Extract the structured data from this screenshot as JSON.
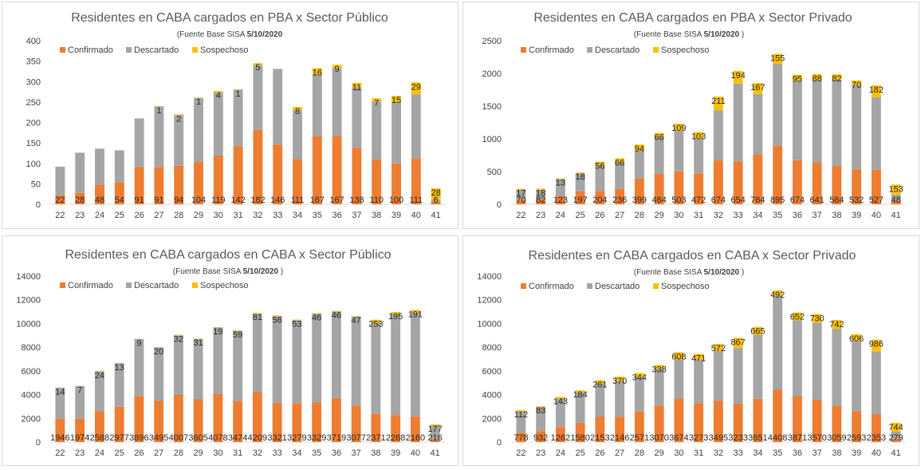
{
  "colors": {
    "confirmado": "#ED7D31",
    "descartado": "#A5A5A5",
    "sospechoso": "#FFC000"
  },
  "legend": [
    "Confirmado",
    "Descartado",
    "Sospechoso"
  ],
  "source_label": "(Fuente  Base SISA",
  "source_date": "5/10/2020",
  "chart_data": [
    {
      "type": "bar",
      "stacked": true,
      "title": "Residentes en CABA cargados en PBA x Sector Público",
      "source": "(Fuente  Base SISA  5/10/2020",
      "categories": [
        "22",
        "23",
        "24",
        "25",
        "26",
        "27",
        "28",
        "29",
        "30",
        "31",
        "32",
        "33",
        "34",
        "35",
        "36",
        "37",
        "38",
        "39",
        "40",
        "41"
      ],
      "ylim": [
        0,
        400
      ],
      "yticks": [
        "0",
        "50",
        "100",
        "150",
        "200",
        "250",
        "300",
        "350",
        "400"
      ],
      "series": [
        {
          "name": "Confirmado",
          "values": [
            22,
            28,
            48,
            54,
            91,
            91,
            94,
            104,
            119,
            142,
            182,
            146,
            111,
            167,
            167,
            138,
            110,
            100,
            111,
            6
          ]
        },
        {
          "name": "Descartado",
          "values": [
            70,
            98,
            88,
            78,
            119,
            148,
            124,
            156,
            154,
            138,
            158,
            185,
            119,
            150,
            165,
            148,
            142,
            150,
            158,
            5
          ]
        },
        {
          "name": "Sospechoso",
          "values": [
            0,
            0,
            0,
            0,
            0,
            1,
            2,
            1,
            4,
            1,
            5,
            0,
            8,
            16,
            9,
            11,
            7,
            15,
            29,
            28
          ]
        }
      ],
      "labels": {
        "Confirmado": [
          "22",
          "28",
          "48",
          "54",
          "91",
          "91",
          "94",
          "104",
          "119",
          "142",
          "182",
          "146",
          "111",
          "167",
          "167",
          "138",
          "110",
          "100",
          "111",
          "6"
        ],
        "Sospechoso": [
          "",
          "",
          "",
          "",
          "",
          "1",
          "2",
          "1",
          "4",
          "1",
          "5",
          "",
          "8",
          "16",
          "9",
          "11",
          "7",
          "15",
          "29",
          "28"
        ]
      }
    },
    {
      "type": "bar",
      "stacked": true,
      "title": "Residentes en CABA cargados en PBA x Sector Privado",
      "source": "(Fuente  Base SISA  5/10/2020  )",
      "categories": [
        "22",
        "23",
        "24",
        "25",
        "26",
        "27",
        "28",
        "29",
        "30",
        "31",
        "32",
        "33",
        "34",
        "35",
        "36",
        "37",
        "38",
        "39",
        "40",
        "41"
      ],
      "ylim": [
        0,
        2500
      ],
      "yticks": [
        "0",
        "500",
        "1000",
        "1500",
        "2000",
        "2500"
      ],
      "series": [
        {
          "name": "Confirmado",
          "values": [
            70,
            82,
            123,
            197,
            204,
            236,
            399,
            464,
            503,
            472,
            674,
            654,
            764,
            895,
            674,
            641,
            584,
            532,
            527,
            48
          ]
        },
        {
          "name": "Descartado",
          "values": [
            150,
            140,
            260,
            270,
            390,
            400,
            420,
            560,
            620,
            530,
            760,
            1190,
            920,
            1250,
            1210,
            1260,
            1320,
            1290,
            1110,
            100
          ]
        },
        {
          "name": "Sospechoso",
          "values": [
            17,
            18,
            13,
            18,
            56,
            66,
            94,
            66,
            109,
            103,
            211,
            194,
            167,
            155,
            95,
            88,
            82,
            70,
            182,
            153
          ]
        }
      ],
      "labels": {
        "Confirmado": [
          "70",
          "82",
          "123",
          "197",
          "204",
          "236",
          "399",
          "464",
          "503",
          "472",
          "674",
          "654",
          "764",
          "895",
          "674",
          "641",
          "584",
          "532",
          "527",
          "48"
        ],
        "Sospechoso": [
          "17",
          "18",
          "13",
          "18",
          "56",
          "66",
          "94",
          "66",
          "109",
          "103",
          "211",
          "194",
          "167",
          "155",
          "95",
          "88",
          "82",
          "70",
          "182",
          "153"
        ]
      }
    },
    {
      "type": "bar",
      "stacked": true,
      "title": "Residentes en CABA cargados en CABA x Sector Público",
      "source": "(Fuente  Base SISA  5/10/2020  )",
      "categories": [
        "22",
        "23",
        "24",
        "25",
        "26",
        "27",
        "28",
        "29",
        "30",
        "31",
        "32",
        "33",
        "34",
        "35",
        "36",
        "37",
        "38",
        "39",
        "40",
        "41"
      ],
      "ylim": [
        0,
        14000
      ],
      "yticks": [
        "0",
        "2000",
        "4000",
        "6000",
        "8000",
        "10000",
        "12000",
        "14000"
      ],
      "series": [
        {
          "name": "Confirmado",
          "values": [
            1946,
            1974,
            2588,
            2977,
            3896,
            3495,
            4007,
            3605,
            4078,
            3474,
            4209,
            3321,
            3279,
            3329,
            3719,
            3077,
            2371,
            2268,
            2160,
            216
          ]
        },
        {
          "name": "Descartado",
          "values": [
            2640,
            2760,
            3380,
            3680,
            4800,
            4500,
            5000,
            5100,
            5600,
            5900,
            6600,
            7300,
            7000,
            7500,
            7300,
            7500,
            7700,
            8500,
            8800,
            1100
          ]
        },
        {
          "name": "Sospechoso",
          "values": [
            14,
            7,
            24,
            13,
            9,
            20,
            32,
            31,
            19,
            59,
            81,
            56,
            53,
            46,
            46,
            47,
            253,
            195,
            191,
            177
          ]
        }
      ],
      "labels": {
        "Confirmado": [
          "1946",
          "1974",
          "2588",
          "2977",
          "3896",
          "3495",
          "4007",
          "3605",
          "4078",
          "3474",
          "4209",
          "3321",
          "3279",
          "3329",
          "3719",
          "3077",
          "2371",
          "2268",
          "2160",
          "216"
        ],
        "Sospechoso": [
          "14",
          "7",
          "24",
          "13",
          "9",
          "20",
          "32",
          "31",
          "19",
          "59",
          "81",
          "56",
          "53",
          "46",
          "46",
          "47",
          "253",
          "195",
          "191",
          "177"
        ]
      }
    },
    {
      "type": "bar",
      "stacked": true,
      "title": "Residentes en CABA cargados en CABA x Sector Privado",
      "source": "(Fuente  Base SISA  5/10/2020  )",
      "categories": [
        "22",
        "23",
        "24",
        "25",
        "26",
        "27",
        "28",
        "29",
        "30",
        "31",
        "32",
        "33",
        "34",
        "35",
        "36",
        "37",
        "38",
        "39",
        "40",
        "41"
      ],
      "ylim": [
        0,
        14000
      ],
      "yticks": [
        "0",
        "2000",
        "4000",
        "6000",
        "8000",
        "10000",
        "12000",
        "14000"
      ],
      "series": [
        {
          "name": "Confirmado",
          "values": [
            778,
            932,
            1262,
            1580,
            2153,
            2146,
            2571,
            3070,
            3674,
            3273,
            3495,
            3233,
            3651,
            4408,
            3871,
            3570,
            3059,
            2593,
            2353,
            279
          ]
        },
        {
          "name": "Descartado",
          "values": [
            1800,
            2000,
            2400,
            2600,
            2800,
            3000,
            2900,
            3100,
            3300,
            3700,
            4200,
            4700,
            5400,
            7900,
            6400,
            6500,
            6500,
            5900,
            5300,
            600
          ]
        },
        {
          "name": "Sospechoso",
          "values": [
            112,
            83,
            143,
            184,
            261,
            370,
            344,
            338,
            608,
            471,
            572,
            867,
            665,
            492,
            652,
            730,
            742,
            606,
            986,
            744
          ]
        }
      ],
      "labels": {
        "Confirmado": [
          "778",
          "932",
          "1262",
          "1580",
          "2153",
          "2146",
          "2571",
          "3070",
          "3674",
          "3273",
          "3495",
          "3233",
          "3651",
          "4408",
          "3871",
          "3570",
          "3059",
          "2593",
          "2353",
          "279"
        ],
        "Sospechoso": [
          "112",
          "83",
          "143",
          "184",
          "261",
          "370",
          "344",
          "338",
          "608",
          "471",
          "572",
          "867",
          "665",
          "492",
          "652",
          "730",
          "742",
          "606",
          "986",
          "744"
        ]
      }
    }
  ]
}
